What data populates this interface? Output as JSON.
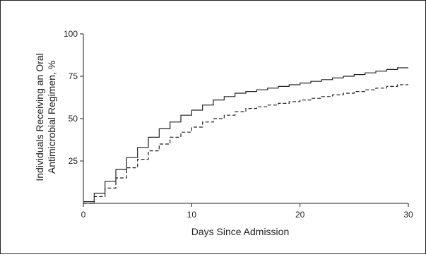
{
  "chart_data": {
    "type": "line",
    "step": true,
    "xlabel": "Days Since Admission",
    "ylabel_lines": [
      "Individuals Receiving an Oral",
      "Antimicrobial Regimen, %"
    ],
    "xlim": [
      0,
      30
    ],
    "ylim": [
      0,
      100
    ],
    "xticks": [
      0,
      10,
      20,
      30
    ],
    "yticks": [
      25,
      50,
      75,
      100
    ],
    "grid": false,
    "series": [
      {
        "style": "solid",
        "color": "#222222",
        "x": [
          0,
          1,
          2,
          3,
          4,
          5,
          6,
          7,
          8,
          9,
          10,
          11,
          12,
          13,
          14,
          15,
          16,
          17,
          18,
          19,
          20,
          21,
          22,
          23,
          24,
          25,
          26,
          27,
          28,
          29,
          30
        ],
        "y": [
          1,
          6,
          13,
          20,
          27,
          33,
          39,
          44,
          48,
          52,
          55,
          58,
          61,
          63,
          65,
          66,
          67,
          68,
          69,
          70,
          71,
          72,
          73,
          74,
          75,
          76,
          77,
          78,
          79,
          80,
          80
        ]
      },
      {
        "style": "dashed",
        "color": "#222222",
        "x": [
          0,
          1,
          2,
          3,
          4,
          5,
          6,
          7,
          8,
          9,
          10,
          11,
          12,
          13,
          14,
          15,
          16,
          17,
          18,
          19,
          20,
          21,
          22,
          23,
          24,
          25,
          26,
          27,
          28,
          29,
          30
        ],
        "y": [
          0,
          4,
          9,
          15,
          21,
          26,
          31,
          35,
          39,
          42,
          45,
          48,
          50,
          52,
          54,
          56,
          57,
          58,
          59,
          60,
          61,
          62,
          63,
          64,
          65,
          66,
          67,
          68,
          69,
          70,
          70
        ]
      }
    ]
  }
}
